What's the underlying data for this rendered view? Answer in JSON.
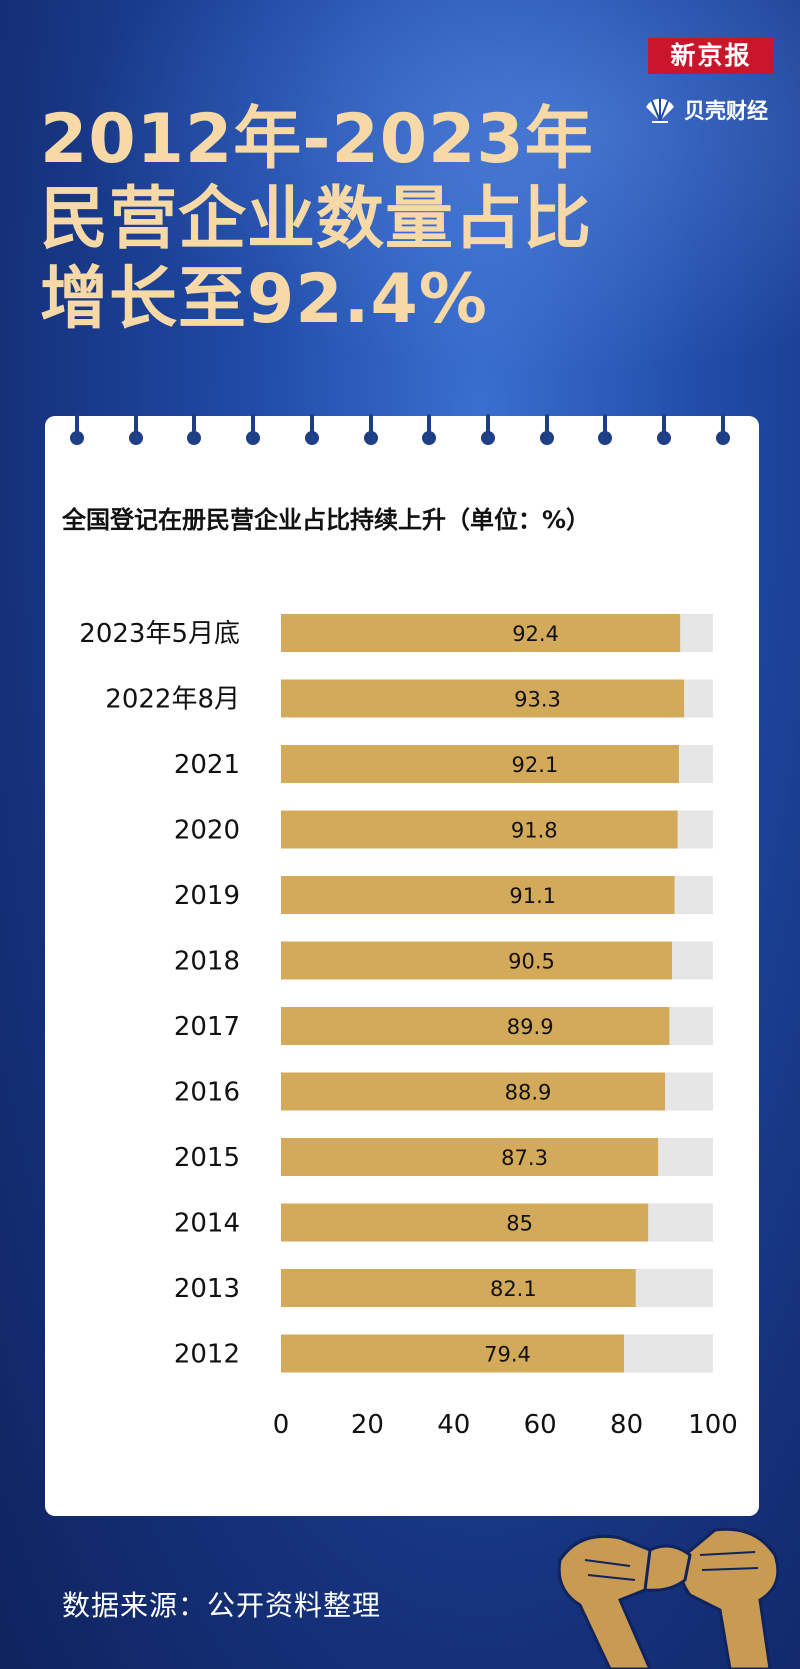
{
  "brand": {
    "newspaper": "新京报",
    "app": "贝壳财经"
  },
  "headline": {
    "line1": "2012年-2023年",
    "line2": "民营企业数量占比",
    "line3": "增长至92.4%"
  },
  "chart_title": "全国登记在册民营企业占比持续上升（单位：%）",
  "source": "数据来源：公开资料整理",
  "colors": {
    "bar": "#d3a95a",
    "track": "#e6e6e6",
    "headline": "#f6d9a6",
    "background": "#1f4aa6"
  },
  "chart_data": {
    "type": "bar",
    "orientation": "horizontal",
    "title": "全国登记在册民营企业占比持续上升（单位：%）",
    "categories": [
      "2023年5月底",
      "2022年8月",
      "2021",
      "2020",
      "2019",
      "2018",
      "2017",
      "2016",
      "2015",
      "2014",
      "2013",
      "2012"
    ],
    "values": [
      92.4,
      93.3,
      92.1,
      91.8,
      91.1,
      90.5,
      89.9,
      88.9,
      87.3,
      85,
      82.1,
      79.4
    ],
    "value_labels": [
      "92.4",
      "93.3",
      "92.1",
      "91.8",
      "91.1",
      "90.5",
      "89.9",
      "88.9",
      "87.3",
      "85",
      "82.1",
      "79.4"
    ],
    "xlim": [
      0,
      100
    ],
    "xticks": [
      "0",
      "20",
      "40",
      "60",
      "80",
      "100"
    ],
    "grid": false,
    "legend": "none"
  }
}
